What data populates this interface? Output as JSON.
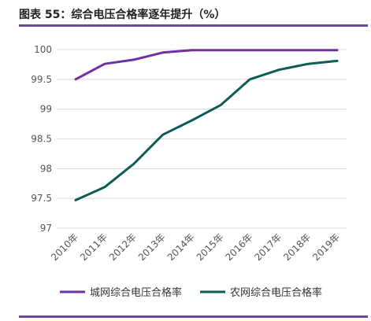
{
  "figure_title": "图表 55：综合电压合格率逐年提升（%）",
  "colors": {
    "rule": "#6a4a95",
    "urban": "#7030a0",
    "rural": "#0f5c55",
    "grid": "#d9d9d9"
  },
  "chart_data": {
    "type": "line",
    "title": "",
    "xlabel": "",
    "ylabel": "",
    "categories": [
      "2010年",
      "2011年",
      "2012年",
      "2013年",
      "2014年",
      "2015年",
      "2016年",
      "2017年",
      "2018年",
      "2019年"
    ],
    "ylim": [
      97,
      100
    ],
    "yticks": [
      "97",
      "97.5",
      "98",
      "98.5",
      "99",
      "99.5",
      "100"
    ],
    "grid": "horizontal",
    "legend_position": "bottom",
    "series": [
      {
        "name": "城网综合电压合格率",
        "color": "#7030a0",
        "values": [
          99.5,
          99.76,
          99.83,
          99.95,
          99.99,
          99.99,
          99.99,
          99.99,
          99.99,
          99.99
        ]
      },
      {
        "name": "农网综合电压合格率",
        "color": "#0f5c55",
        "values": [
          97.47,
          97.69,
          98.08,
          98.57,
          98.81,
          99.07,
          99.5,
          99.66,
          99.76,
          99.81
        ]
      }
    ]
  }
}
